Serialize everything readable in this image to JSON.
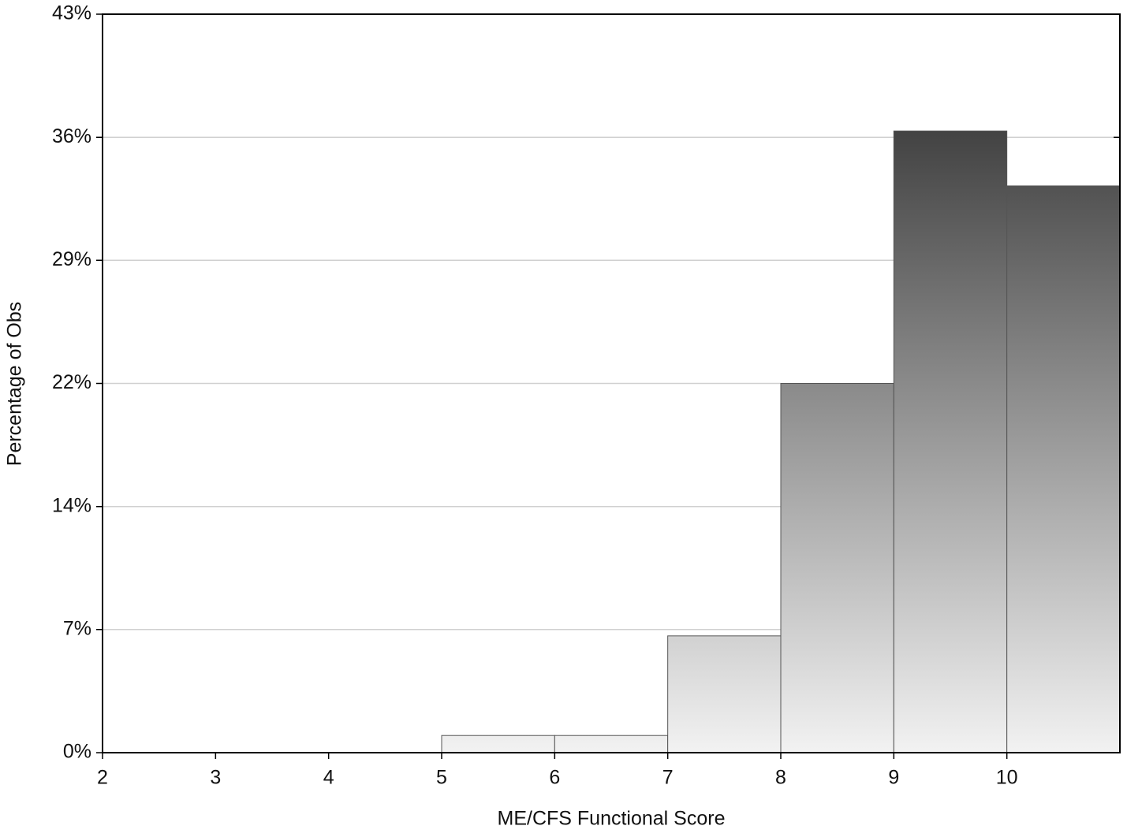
{
  "chart_data": {
    "type": "histogram",
    "x_label": "ME/CFS Functional Score",
    "y_label": "Percentage of Obs",
    "bins": [
      2,
      3,
      4,
      5,
      6,
      7,
      8,
      9,
      10,
      11
    ],
    "values": [
      0,
      0,
      0,
      1.0,
      1.0,
      6.8,
      21.5,
      36.2,
      33.0
    ],
    "gradient": [
      "#f2f2f2",
      "#222222"
    ],
    "xlim": [
      2,
      11
    ],
    "xticks": [
      2,
      3,
      4,
      5,
      6,
      7,
      8,
      9,
      10
    ],
    "ylim": [
      0,
      43
    ],
    "yticks": [
      {
        "value": 0,
        "label": "0%"
      },
      {
        "value": 7.17,
        "label": "7%"
      },
      {
        "value": 14.33,
        "label": "14%"
      },
      {
        "value": 21.5,
        "label": "22%"
      },
      {
        "value": 28.67,
        "label": "29%"
      },
      {
        "value": 35.83,
        "label": "36%"
      },
      {
        "value": 43,
        "label": "43%"
      }
    ],
    "grid": true
  }
}
